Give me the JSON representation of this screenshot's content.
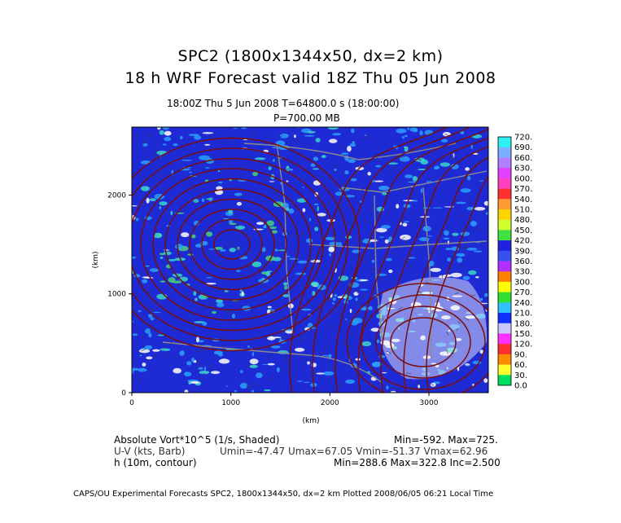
{
  "header": {
    "title_line1": "SPC2 (1800x1344x50, dx=2 km)",
    "title_line2": "18 h  WRF Forecast valid 18Z Thu 05 Jun 2008",
    "time_line": "18:00Z Thu   5 Jun 2008     T=64800.0 s (18:00:00)",
    "pressure_line": "P=700.00 MB"
  },
  "fields": [
    {
      "label": "Absolute Vort*10^5 (1/s, Shaded)",
      "stats": "Min=-592.  Max=725."
    },
    {
      "label": "U-V (kts, Barb)",
      "stats": "Umin=-47.47 Umax=67.05 Vmin=-51.37 Vmax=62.96"
    },
    {
      "label": "h (10m, contour)",
      "stats": "Min=288.6 Max=322.8 Inc=2.500"
    }
  ],
  "footer": "CAPS/OU Experimental Forecasts   SPC2, 1800x1344x50, dx=2 km   Plotted 2008/06/05 06:21 Local Time",
  "colors": {
    "background": "#1e2ad4",
    "shade_light": "#2a9fff",
    "shade_cyan": "#39d6c8",
    "shade_green": "#45d27a",
    "shade_white": "#ffffff",
    "contour": "#7a0d0d",
    "borders": "#8c8c8c"
  },
  "chart_data": {
    "type": "heatmap",
    "x_axis": {
      "label": "(km)",
      "range": [
        0,
        3600
      ],
      "ticks": [
        "0",
        "1000",
        "2000",
        "3000"
      ],
      "tick_values": [
        0,
        1000,
        2000,
        3000
      ]
    },
    "y_axis": {
      "label": "(km)",
      "range": [
        0,
        2688
      ],
      "ticks": [
        "0",
        "1000",
        "2000"
      ],
      "tick_values": [
        0,
        1000,
        2000
      ]
    },
    "colorbar": {
      "labels": [
        "720.",
        "690.",
        "660.",
        "630.",
        "600.",
        "570.",
        "540.",
        "510.",
        "480.",
        "450.",
        "420.",
        "390.",
        "360.",
        "330.",
        "300.",
        "270.",
        "240.",
        "210.",
        "180.",
        "150.",
        "120.",
        "90.",
        "60.",
        "30.",
        "0.0"
      ],
      "colors": [
        "#2ff0f0",
        "#7ab0ff",
        "#b080ff",
        "#e040ff",
        "#ff40c0",
        "#ff3030",
        "#ff9a30",
        "#ffd400",
        "#d0ff30",
        "#40e040",
        "#2020e0",
        "#3850f0",
        "#b030ff",
        "#ff8000",
        "#ffff00",
        "#30e030",
        "#30c0ff",
        "#1030ff",
        "#c8c8ff",
        "#ff30ff",
        "#ff3030",
        "#ff8c00",
        "#ffff30",
        "#00e060",
        "#1030ff"
      ]
    },
    "grid": false,
    "legend": "colorbar-right"
  }
}
